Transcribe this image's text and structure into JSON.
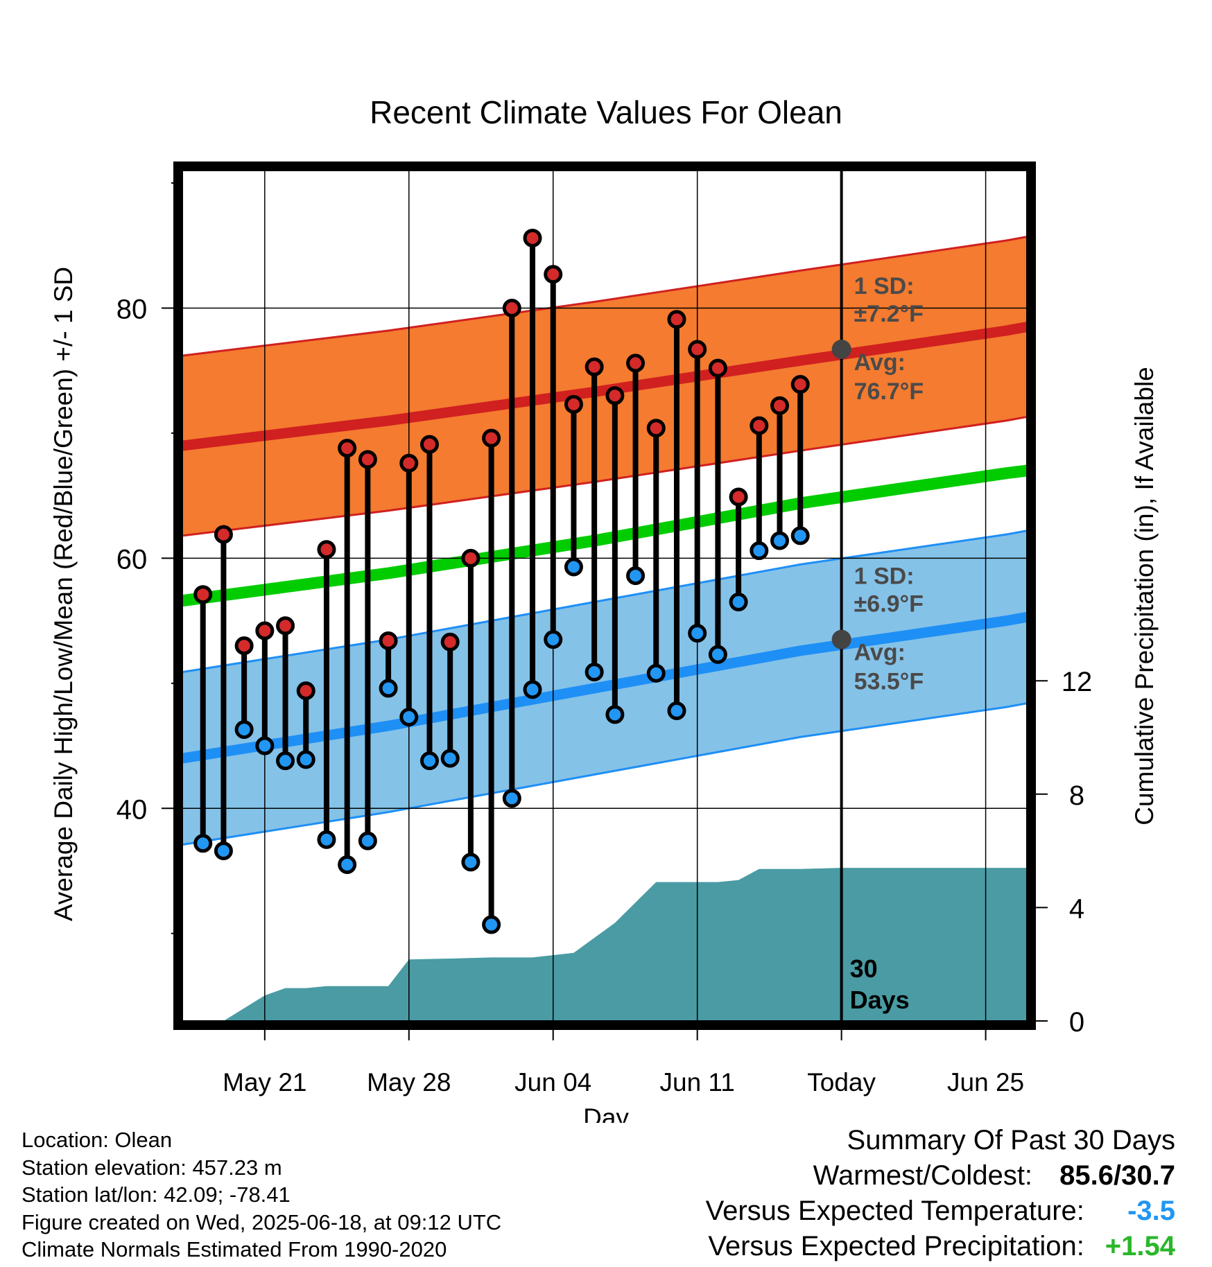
{
  "colors": {
    "high_band": "#f47b2f",
    "high_line": "#d02020",
    "low_band": "#85c2e8",
    "low_line": "#1e8ff5",
    "mean_line": "#00cc00",
    "precip": "#4a9ba3",
    "high_marker": "#d42a2a",
    "low_marker": "#2196f3",
    "cold_value": "#2196f3",
    "precip_value": "#2ab72a"
  },
  "chart_data": {
    "type": "line",
    "title": "Recent Climate Values For Olean",
    "xlabel": "Day",
    "ylabel": "Average Daily High/Low/Mean (Red/Blue/Green) +/- 1 SD",
    "y2label": "Cumulative Precipitation (in), If Available",
    "xlim": [
      "May 17",
      "Jun 27"
    ],
    "ylim": [
      23,
      91
    ],
    "y2lim": [
      0,
      30
    ],
    "yticks": [
      40,
      60,
      80
    ],
    "y2ticks": [
      0,
      4,
      8,
      12
    ],
    "x_tick_labels": [
      "May 21",
      "May 28",
      "Jun 04",
      "Jun 11",
      "Today",
      "Jun 25"
    ],
    "x_tick_dates": [
      "May 21",
      "May 28",
      "Jun 04",
      "Jun 11",
      "Jun 18",
      "Jun 25"
    ],
    "today": "Jun 18",
    "grid": true,
    "daily": {
      "dates": [
        "May 18",
        "May 19",
        "May 20",
        "May 21",
        "May 22",
        "May 23",
        "May 24",
        "May 25",
        "May 26",
        "May 27",
        "May 28",
        "May 29",
        "May 30",
        "May 31",
        "Jun 01",
        "Jun 02",
        "Jun 03",
        "Jun 04",
        "Jun 05",
        "Jun 06",
        "Jun 07",
        "Jun 08",
        "Jun 09",
        "Jun 10",
        "Jun 11",
        "Jun 12",
        "Jun 13",
        "Jun 14",
        "Jun 15",
        "Jun 16",
        "Jun 17"
      ],
      "high": [
        57.1,
        61.9,
        53.0,
        54.2,
        54.6,
        49.4,
        60.7,
        68.8,
        67.9,
        53.4,
        67.6,
        69.1,
        53.3,
        60.0,
        69.6,
        80.0,
        85.6,
        82.7,
        72.3,
        75.3,
        73.0,
        75.6,
        70.4,
        79.1,
        76.7,
        75.2,
        64.9,
        70.6,
        72.2,
        73.9,
        null
      ],
      "low": [
        37.2,
        36.6,
        46.3,
        45.0,
        43.8,
        43.9,
        37.5,
        35.5,
        37.4,
        49.6,
        47.3,
        43.8,
        44.0,
        35.7,
        30.7,
        40.8,
        49.5,
        53.5,
        59.3,
        50.9,
        47.5,
        58.6,
        50.8,
        47.8,
        54.0,
        52.3,
        56.5,
        60.6,
        61.4,
        61.8,
        null
      ]
    },
    "normals_dates": [
      "May 17",
      "May 27",
      "Jun 06",
      "Jun 16",
      "Jun 26",
      "Jun 27"
    ],
    "normal_high": [
      69.0,
      71.0,
      73.3,
      75.8,
      78.2,
      78.5
    ],
    "normal_high_sd": 7.2,
    "normal_low": [
      44.0,
      46.6,
      49.6,
      52.6,
      55.0,
      55.3
    ],
    "normal_low_sd": 6.9,
    "normal_mean": [
      56.6,
      58.8,
      61.4,
      64.4,
      66.8,
      67.0
    ],
    "precipitation": {
      "dates": [
        "May 19",
        "May 21",
        "May 22",
        "May 23",
        "May 24",
        "May 26",
        "May 27",
        "May 28",
        "May 30",
        "Jun 01",
        "Jun 03",
        "Jun 05",
        "Jun 07",
        "Jun 09",
        "Jun 10",
        "Jun 12",
        "Jun 13",
        "Jun 14",
        "Jun 16",
        "Jun 18",
        "Jun 27"
      ],
      "cumulative": [
        0.0,
        0.9,
        1.16,
        1.16,
        1.23,
        1.23,
        1.23,
        2.17,
        2.2,
        2.24,
        2.24,
        2.4,
        3.46,
        4.9,
        4.9,
        4.9,
        4.97,
        5.36,
        5.36,
        5.4,
        5.4
      ]
    },
    "annotations": {
      "high_sd_label": "1 SD:",
      "high_sd_value": "±7.2°F",
      "high_avg_label": "Avg:",
      "high_avg_value": "76.7°F",
      "low_sd_label": "1 SD:",
      "low_sd_value": "±6.9°F",
      "low_avg_label": "Avg:",
      "low_avg_value": "53.5°F",
      "period_number": "30",
      "period_unit": "Days"
    }
  },
  "info": {
    "location": "Location: Olean",
    "elevation": "Station elevation: 457.23 m",
    "latlon": "Station lat/lon: 42.09; -78.41",
    "created": "Figure created on Wed, 2025-06-18, at 09:12 UTC",
    "normals": "Climate Normals Estimated From 1990-2020"
  },
  "summary": {
    "heading": "Summary Of Past 30 Days",
    "warm_cold_label": "Warmest/Coldest:",
    "warm_cold_value": "85.6/30.7",
    "temp_label": "Versus Expected Temperature:",
    "temp_value": "-3.5",
    "precip_label": "Versus Expected Precipitation:",
    "precip_value": "+1.54"
  }
}
